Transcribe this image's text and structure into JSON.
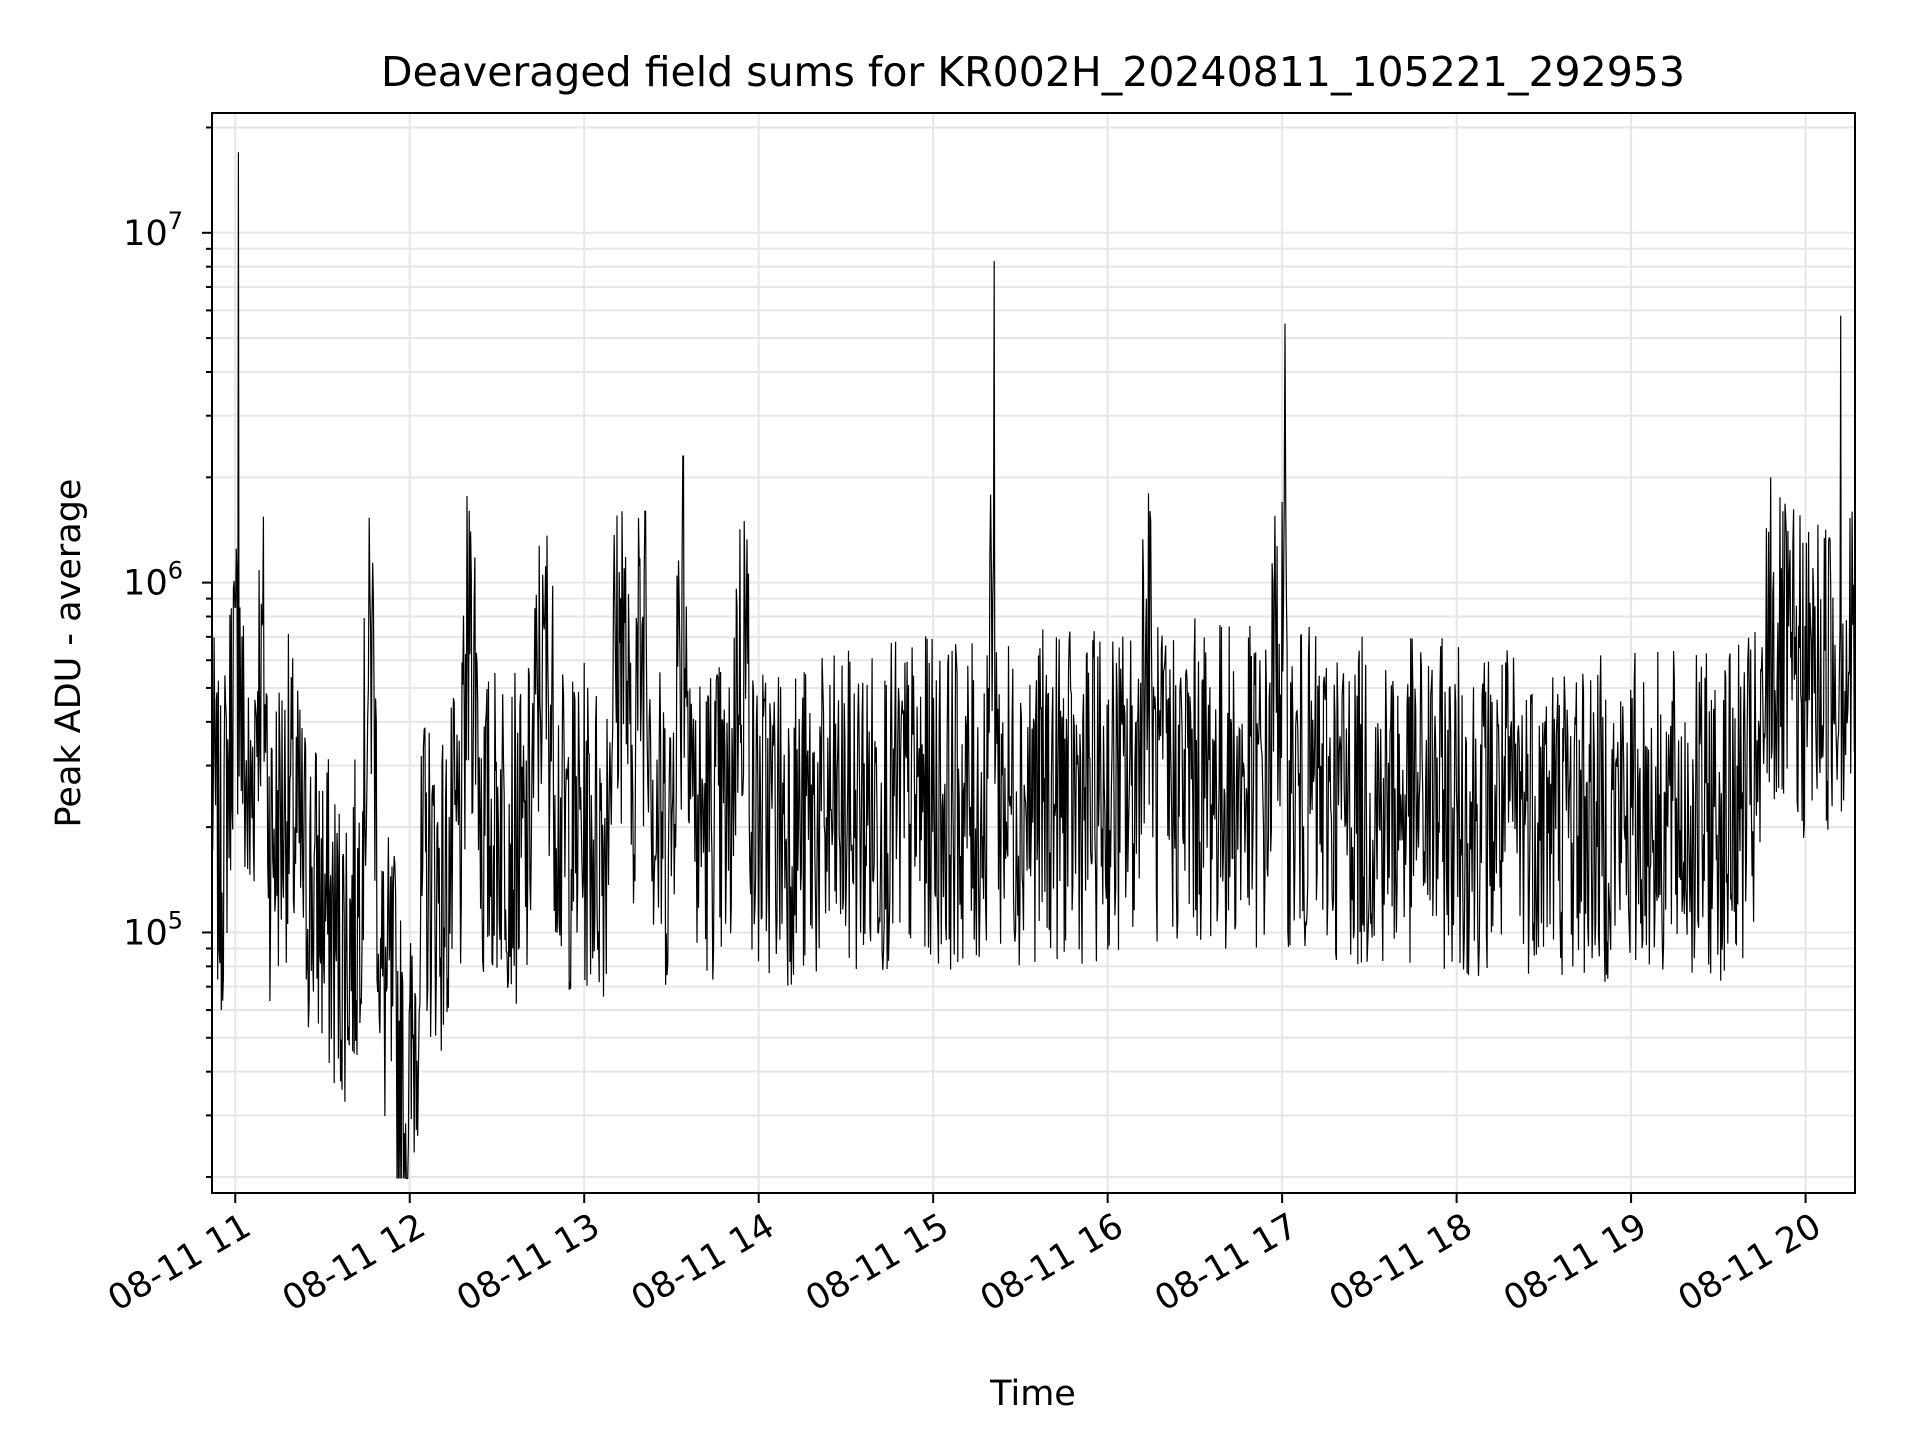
{
  "chart_data": {
    "type": "line",
    "title": "Deaveraged field sums for KR002H_20240811_105221_292953",
    "xlabel": "Time",
    "ylabel": "Peak ADU - average",
    "x_range": [
      "2024-08-11 10:52:21",
      "2024-08-11 20:17:00"
    ],
    "y_range": [
      18000,
      22000000
    ],
    "yscale": "log",
    "grid": true,
    "x_ticks": [
      "08-11 11",
      "08-11 12",
      "08-11 13",
      "08-11 14",
      "08-11 15",
      "08-11 16",
      "08-11 17",
      "08-11 18",
      "08-11 19",
      "08-11 20"
    ],
    "y_ticks": [
      {
        "base": "10",
        "exp": "5",
        "value": 100000
      },
      {
        "base": "10",
        "exp": "6",
        "value": 1000000
      },
      {
        "base": "10",
        "exp": "7",
        "value": 10000000
      }
    ],
    "line_color": "#000000",
    "grid_color": "#e6e6e6",
    "series": [
      {
        "points": [
          [
            "10:52",
            280000
          ],
          [
            "10:55",
            150000
          ],
          [
            "10:58",
            320000
          ],
          [
            "11:00",
            850000
          ],
          [
            "11:01",
            17000000
          ],
          [
            "11:02",
            400000
          ],
          [
            "11:05",
            200000
          ],
          [
            "11:09",
            870000
          ],
          [
            "11:12",
            180000
          ],
          [
            "11:18",
            250000
          ],
          [
            "11:24",
            150000
          ],
          [
            "11:30",
            120000
          ],
          [
            "11:36",
            90000
          ],
          [
            "11:42",
            110000
          ],
          [
            "11:47",
            780000
          ],
          [
            "11:50",
            70000
          ],
          [
            "11:55",
            60000
          ],
          [
            "11:59",
            25000
          ],
          [
            "12:05",
            150000
          ],
          [
            "12:12",
            130000
          ],
          [
            "12:18",
            200000
          ],
          [
            "12:21",
            1400000
          ],
          [
            "12:25",
            180000
          ],
          [
            "12:32",
            220000
          ],
          [
            "12:40",
            160000
          ],
          [
            "12:46",
            780000
          ],
          [
            "12:52",
            190000
          ],
          [
            "13:00",
            200000
          ],
          [
            "13:07",
            180000
          ],
          [
            "13:13",
            1600000
          ],
          [
            "13:16",
            220000
          ],
          [
            "13:21",
            1600000
          ],
          [
            "13:24",
            210000
          ],
          [
            "13:30",
            190000
          ],
          [
            "13:34",
            2300000
          ],
          [
            "13:38",
            200000
          ],
          [
            "13:45",
            220000
          ],
          [
            "13:50",
            190000
          ],
          [
            "13:55",
            1500000
          ],
          [
            "13:58",
            200000
          ],
          [
            "14:05",
            220000
          ],
          [
            "14:15",
            200000
          ],
          [
            "14:25",
            210000
          ],
          [
            "14:35",
            220000
          ],
          [
            "14:45",
            230000
          ],
          [
            "15:00",
            240000
          ],
          [
            "15:10",
            230000
          ],
          [
            "15:18",
            220000
          ],
          [
            "15:20",
            1100000
          ],
          [
            "15:21",
            8300000
          ],
          [
            "15:22",
            250000
          ],
          [
            "15:30",
            240000
          ],
          [
            "15:40",
            250000
          ],
          [
            "15:50",
            240000
          ],
          [
            "16:00",
            250000
          ],
          [
            "16:10",
            260000
          ],
          [
            "16:14",
            1800000
          ],
          [
            "16:16",
            260000
          ],
          [
            "16:25",
            270000
          ],
          [
            "16:35",
            270000
          ],
          [
            "16:45",
            260000
          ],
          [
            "16:55",
            250000
          ],
          [
            "17:00",
            1700000
          ],
          [
            "17:01",
            5500000
          ],
          [
            "17:02",
            260000
          ],
          [
            "17:10",
            250000
          ],
          [
            "17:20",
            240000
          ],
          [
            "17:35",
            230000
          ],
          [
            "17:50",
            240000
          ],
          [
            "18:05",
            220000
          ],
          [
            "18:20",
            230000
          ],
          [
            "18:35",
            220000
          ],
          [
            "18:50",
            210000
          ],
          [
            "19:05",
            220000
          ],
          [
            "19:20",
            210000
          ],
          [
            "19:35",
            220000
          ],
          [
            "19:45",
            260000
          ],
          [
            "19:48",
            2000000
          ],
          [
            "19:50",
            600000
          ],
          [
            "19:55",
            550000
          ],
          [
            "20:00",
            520000
          ],
          [
            "20:05",
            560000
          ],
          [
            "20:10",
            580000
          ],
          [
            "20:12",
            5800000
          ],
          [
            "20:14",
            600000
          ],
          [
            "20:17",
            620000
          ]
        ]
      }
    ]
  }
}
